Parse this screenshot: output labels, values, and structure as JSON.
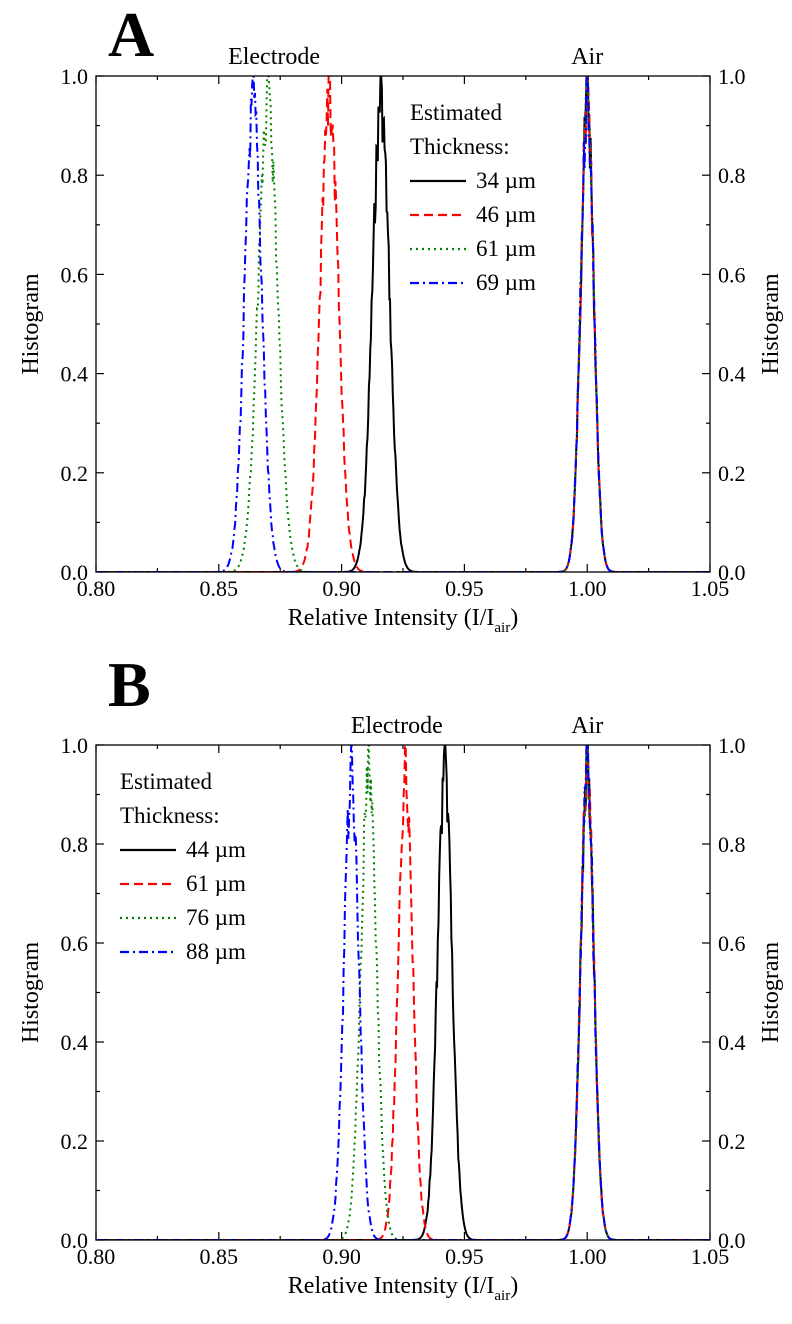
{
  "chart_data": [
    {
      "type": "line",
      "panel_label": "A",
      "xlabel": "Relative Intensity (I/I",
      "xlabel_sub": "air",
      "xlabel_close": ")",
      "ylabel_left": "Histogram",
      "ylabel_right": "Histogram",
      "xlim": [
        0.8,
        1.05
      ],
      "ylim": [
        0.0,
        1.0
      ],
      "x_ticks": [
        "0.80",
        "0.85",
        "0.90",
        "0.95",
        "1.00",
        "1.05"
      ],
      "y_ticks": [
        "0.0",
        "0.2",
        "0.4",
        "0.6",
        "0.8",
        "1.0"
      ],
      "grid": false,
      "annotations": [
        {
          "text": "Electrode",
          "x": 0.8725
        },
        {
          "text": "Air",
          "x": 1.0
        }
      ],
      "legend": {
        "placement": "top-center",
        "title_lines": [
          "Estimated",
          "Thickness:"
        ]
      },
      "series": [
        {
          "name": "34 µm",
          "color": "#000000",
          "dash": "solid",
          "electrode_peak_x": 0.916,
          "electrode_sigma": 0.0035,
          "air_peak_x": 1.0,
          "air_sigma": 0.0027
        },
        {
          "name": "46 µm",
          "color": "#ff0000",
          "dash": "dash",
          "electrode_peak_x": 0.895,
          "electrode_sigma": 0.0037,
          "air_peak_x": 1.0,
          "air_sigma": 0.0027
        },
        {
          "name": "61 µm",
          "color": "#008000",
          "dash": "dot",
          "electrode_peak_x": 0.87,
          "electrode_sigma": 0.004,
          "air_peak_x": 1.0,
          "air_sigma": 0.0027
        },
        {
          "name": "69 µm",
          "color": "#0000ff",
          "dash": "dashdot",
          "electrode_peak_x": 0.864,
          "electrode_sigma": 0.0035,
          "air_peak_x": 1.0,
          "air_sigma": 0.0027
        }
      ]
    },
    {
      "type": "line",
      "panel_label": "B",
      "xlabel": "Relative Intensity (I/I",
      "xlabel_sub": "air",
      "xlabel_close": ")",
      "ylabel_left": "Histogram",
      "ylabel_right": "Histogram",
      "xlim": [
        0.8,
        1.05
      ],
      "ylim": [
        0.0,
        1.0
      ],
      "x_ticks": [
        "0.80",
        "0.85",
        "0.90",
        "0.95",
        "1.00",
        "1.05"
      ],
      "y_ticks": [
        "0.0",
        "0.2",
        "0.4",
        "0.6",
        "0.8",
        "1.0"
      ],
      "grid": false,
      "annotations": [
        {
          "text": "Electrode",
          "x": 0.9225
        },
        {
          "text": "Air",
          "x": 1.0
        }
      ],
      "legend": {
        "placement": "top-left",
        "title_lines": [
          "Estimated",
          "Thickness:"
        ]
      },
      "series": [
        {
          "name": "44 µm",
          "color": "#000000",
          "dash": "solid",
          "electrode_peak_x": 0.942,
          "electrode_sigma": 0.003,
          "air_peak_x": 1.0,
          "air_sigma": 0.0027
        },
        {
          "name": "61 µm",
          "color": "#ff0000",
          "dash": "dash",
          "electrode_peak_x": 0.926,
          "electrode_sigma": 0.003,
          "air_peak_x": 1.0,
          "air_sigma": 0.0027
        },
        {
          "name": "76 µm",
          "color": "#008000",
          "dash": "dot",
          "electrode_peak_x": 0.911,
          "electrode_sigma": 0.0032,
          "air_peak_x": 1.0,
          "air_sigma": 0.0027
        },
        {
          "name": "88 µm",
          "color": "#0000ff",
          "dash": "dashdot",
          "electrode_peak_x": 0.904,
          "electrode_sigma": 0.003,
          "air_peak_x": 1.0,
          "air_sigma": 0.0027
        }
      ]
    }
  ]
}
